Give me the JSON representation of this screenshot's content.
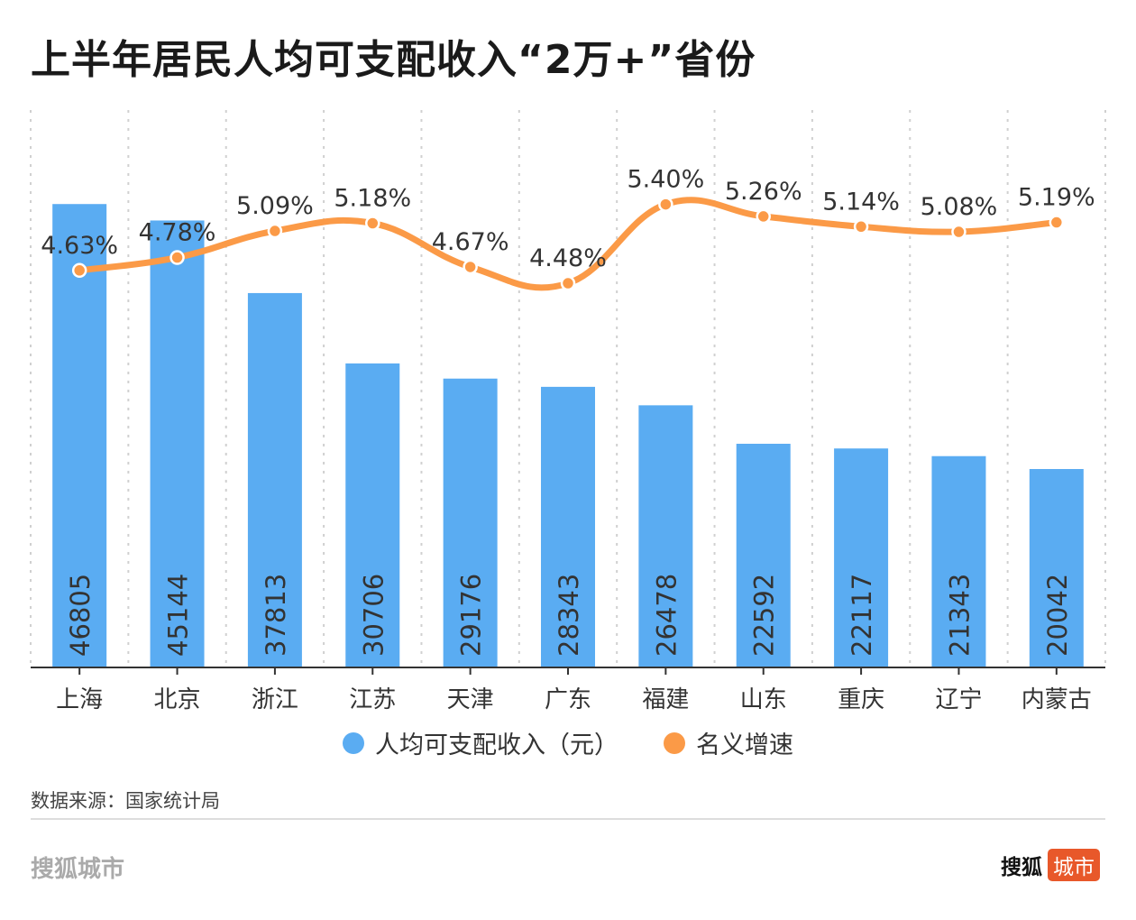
{
  "title": "上半年居民人均可支配收入“2万+”省份",
  "chart_data": {
    "type": "bar+line",
    "title": "上半年居民人均可支配收入“2万+”省份",
    "categories": [
      "上海",
      "北京",
      "浙江",
      "江苏",
      "天津",
      "广东",
      "福建",
      "山东",
      "重庆",
      "辽宁",
      "内蒙古"
    ],
    "series": [
      {
        "name": "人均可支配收入（元）",
        "type": "bar",
        "axis": "left",
        "color": "#5aacf2",
        "values": [
          46805,
          45144,
          37813,
          30706,
          29176,
          28343,
          26478,
          22592,
          22117,
          21343,
          20042
        ],
        "labels": [
          "46805",
          "45144",
          "37813",
          "30706",
          "29176",
          "28343",
          "26478",
          "22592",
          "22117",
          "21343",
          "20042"
        ]
      },
      {
        "name": "名义增速",
        "type": "line",
        "axis": "right",
        "color": "#fb9a47",
        "smooth": true,
        "values": [
          4.63,
          4.78,
          5.09,
          5.18,
          4.67,
          4.48,
          5.4,
          5.26,
          5.14,
          5.08,
          5.19
        ],
        "labels": [
          "4.63%",
          "4.78%",
          "5.09%",
          "5.18%",
          "4.67%",
          "4.48%",
          "5.40%",
          "5.26%",
          "5.14%",
          "5.08%",
          "5.19%"
        ]
      }
    ],
    "ylim": [
      0,
      56300
    ],
    "y2lim": [
      0,
      6.5
    ],
    "grid": "vertical dotted",
    "legend": "bottom"
  },
  "source": "数据来源：国家统计局",
  "brand_left": "搜狐城市",
  "brand_right": {
    "name": "搜狐",
    "tag": "城市"
  }
}
